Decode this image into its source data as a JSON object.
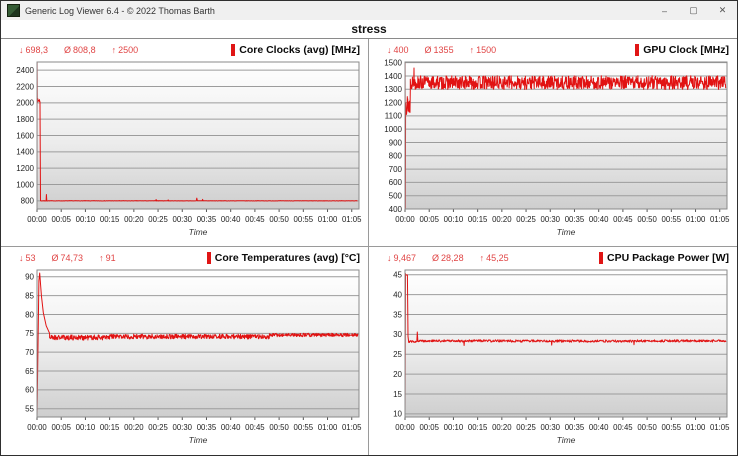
{
  "window": {
    "title": "Generic Log Viewer 6.4 - © 2022 Thomas Barth",
    "controls": {
      "minimize": "–",
      "maximize": "▢",
      "close": "✕"
    }
  },
  "header": {
    "title": "stress"
  },
  "colors": {
    "series_red": "#e11212",
    "stats_red": "#e04545",
    "grid_line": "#9c9c9c",
    "plot_border": "#8a8a8a",
    "axis_text": "#222222"
  },
  "chart_data": [
    {
      "id": "core-clocks",
      "type": "line",
      "title": "Core Clocks (avg) [MHz]",
      "stats": {
        "min_label": "↓",
        "min": "698,3",
        "avg_label": "Ø",
        "avg": "808,8",
        "max_label": "↑",
        "max": "2500"
      },
      "xlabel": "Time",
      "xlim_minutes": [
        0,
        66.5
      ],
      "xtick_minutes": [
        0,
        5,
        10,
        15,
        20,
        25,
        30,
        35,
        40,
        45,
        50,
        55,
        60,
        65
      ],
      "xtick_labels": [
        "00:00",
        "00:05",
        "00:10",
        "00:15",
        "00:20",
        "00:25",
        "00:30",
        "00:35",
        "00:40",
        "00:45",
        "00:50",
        "00:55",
        "01:00",
        "01:05"
      ],
      "ylim": [
        700,
        2500
      ],
      "yticks": [
        800,
        1000,
        1200,
        1400,
        1600,
        1800,
        2000,
        2200,
        2400
      ],
      "seed": 7,
      "signal": [
        {
          "k": "m",
          "t": 0,
          "v": 698.3
        },
        {
          "k": "l",
          "t": 0.03,
          "v": 2500
        },
        {
          "k": "l",
          "t": 0.06,
          "v": 2040
        },
        {
          "k": "f",
          "t1": 0.66,
          "v": 2028,
          "a": 22,
          "s": 0.05
        },
        {
          "k": "l",
          "t": 0.72,
          "v": 800
        },
        {
          "k": "f",
          "t1": 1.8,
          "v": 800,
          "a": 3,
          "s": 0.1
        },
        {
          "k": "sp",
          "t": 1.95,
          "v": 878,
          "w": 0.08
        },
        {
          "k": "f",
          "t1": 24.4,
          "v": 800,
          "a": 2.5,
          "s": 0.1
        },
        {
          "k": "sp",
          "t": 24.6,
          "v": 816,
          "w": 0.1
        },
        {
          "k": "f",
          "t1": 26.8,
          "v": 801,
          "a": 3,
          "s": 0.1
        },
        {
          "k": "sp",
          "t": 27.1,
          "v": 812,
          "w": 0.1
        },
        {
          "k": "f",
          "t1": 32.7,
          "v": 800,
          "a": 2.5,
          "s": 0.1
        },
        {
          "k": "sp",
          "t": 33,
          "v": 834,
          "w": 0.12
        },
        {
          "k": "sp",
          "t": 34.2,
          "v": 818,
          "w": 0.1
        },
        {
          "k": "f",
          "t1": 66.3,
          "v": 800,
          "a": 2.5,
          "s": 0.1
        }
      ]
    },
    {
      "id": "gpu-clock",
      "type": "line",
      "title": "GPU Clock [MHz]",
      "stats": {
        "min_label": "↓",
        "min": "400",
        "avg_label": "Ø",
        "avg": "1355",
        "max_label": "↑",
        "max": "1500"
      },
      "xlabel": "Time",
      "xlim_minutes": [
        0,
        66.5
      ],
      "xtick_minutes": [
        0,
        5,
        10,
        15,
        20,
        25,
        30,
        35,
        40,
        45,
        50,
        55,
        60,
        65
      ],
      "xtick_labels": [
        "00:00",
        "00:05",
        "00:10",
        "00:15",
        "00:20",
        "00:25",
        "00:30",
        "00:35",
        "00:40",
        "00:45",
        "00:50",
        "00:55",
        "01:00",
        "01:05"
      ],
      "ylim": [
        400,
        1505
      ],
      "yticks": [
        400,
        500,
        600,
        700,
        800,
        900,
        1000,
        1100,
        1200,
        1300,
        1400,
        1500
      ],
      "seed": 13,
      "signal": [
        {
          "k": "m",
          "t": 0,
          "v": 1400
        },
        {
          "k": "l",
          "t": 0.02,
          "v": 1500
        },
        {
          "k": "l",
          "t": 0.06,
          "v": 400
        },
        {
          "k": "l",
          "t": 0.12,
          "v": 1180
        },
        {
          "k": "b",
          "t1": 1.05,
          "lo": 1110,
          "hi": 1265,
          "s": 0.04
        },
        {
          "k": "l",
          "t": 1.1,
          "v": 1300
        },
        {
          "k": "b",
          "t1": 1.75,
          "lo": 1300,
          "hi": 1400,
          "s": 0.06
        },
        {
          "k": "sp",
          "t": 1.85,
          "v": 1460,
          "w": 0.05
        },
        {
          "k": "b",
          "t1": 66.3,
          "lo": 1298,
          "hi": 1402,
          "s": 0.07
        }
      ]
    },
    {
      "id": "core-temperatures",
      "type": "line",
      "title": "Core Temperatures (avg) [°C]",
      "stats": {
        "min_label": "↓",
        "min": "53",
        "avg_label": "Ø",
        "avg": "74,73",
        "max_label": "↑",
        "max": "91"
      },
      "xlabel": "Time",
      "xlim_minutes": [
        0,
        66.5
      ],
      "xtick_minutes": [
        0,
        5,
        10,
        15,
        20,
        25,
        30,
        35,
        40,
        45,
        50,
        55,
        60,
        65
      ],
      "xtick_labels": [
        "00:00",
        "00:05",
        "00:10",
        "00:15",
        "00:20",
        "00:25",
        "00:30",
        "00:35",
        "00:40",
        "00:45",
        "00:50",
        "00:55",
        "01:00",
        "01:05"
      ],
      "ylim": [
        52.8,
        91.8
      ],
      "yticks": [
        55,
        60,
        65,
        70,
        75,
        80,
        85,
        90
      ],
      "seed": 21,
      "signal": [
        {
          "k": "m",
          "t": 0,
          "v": 53
        },
        {
          "k": "l",
          "t": 0.4,
          "v": 89
        },
        {
          "k": "l",
          "t": 0.55,
          "v": 91
        },
        {
          "k": "l",
          "t": 0.9,
          "v": 85
        },
        {
          "k": "l",
          "t": 1.3,
          "v": 80.5
        },
        {
          "k": "l",
          "t": 1.9,
          "v": 77
        },
        {
          "k": "l",
          "t": 2.6,
          "v": 75
        },
        {
          "k": "b",
          "t1": 15,
          "lo": 73.2,
          "hi": 74.6,
          "s": 0.07
        },
        {
          "k": "b",
          "t1": 48,
          "lo": 73.5,
          "hi": 74.8,
          "s": 0.07
        },
        {
          "k": "b",
          "t1": 66.3,
          "lo": 74.1,
          "hi": 75,
          "s": 0.07
        }
      ]
    },
    {
      "id": "cpu-package-power",
      "type": "line",
      "title": "CPU Package Power [W]",
      "stats": {
        "min_label": "↓",
        "min": "9,467",
        "avg_label": "Ø",
        "avg": "28,28",
        "max_label": "↑",
        "max": "45,25"
      },
      "xlabel": "Time",
      "xlim_minutes": [
        0,
        66.5
      ],
      "xtick_minutes": [
        0,
        5,
        10,
        15,
        20,
        25,
        30,
        35,
        40,
        45,
        50,
        55,
        60,
        65
      ],
      "xtick_labels": [
        "00:00",
        "00:05",
        "00:10",
        "00:15",
        "00:20",
        "00:25",
        "00:30",
        "00:35",
        "00:40",
        "00:45",
        "00:50",
        "00:55",
        "01:00",
        "01:05"
      ],
      "ylim": [
        9.2,
        46.2
      ],
      "yticks": [
        10,
        15,
        20,
        25,
        30,
        35,
        40,
        45
      ],
      "seed": 29,
      "signal": [
        {
          "k": "m",
          "t": 0,
          "v": 9.467
        },
        {
          "k": "l",
          "t": 0.1,
          "v": 45.25
        },
        {
          "k": "f",
          "t1": 0.5,
          "v": 45.0,
          "a": 0.15,
          "s": 0.05
        },
        {
          "k": "l",
          "t": 0.62,
          "v": 29.5
        },
        {
          "k": "l",
          "t": 0.75,
          "v": 28.2
        },
        {
          "k": "f",
          "t1": 2.3,
          "v": 28.2,
          "a": 0.25,
          "s": 0.08
        },
        {
          "k": "sp",
          "t": 2.55,
          "v": 30.6,
          "w": 0.12
        },
        {
          "k": "f",
          "t1": 12,
          "v": 28.35,
          "a": 0.3,
          "s": 0.09
        },
        {
          "k": "sp",
          "t": 12.2,
          "v": 27.2,
          "w": 0.08
        },
        {
          "k": "f",
          "t1": 30,
          "v": 28.35,
          "a": 0.3,
          "s": 0.09
        },
        {
          "k": "sp",
          "t": 30.3,
          "v": 27.3,
          "w": 0.08
        },
        {
          "k": "f",
          "t1": 47,
          "v": 28.3,
          "a": 0.3,
          "s": 0.09
        },
        {
          "k": "sp",
          "t": 47.3,
          "v": 27.4,
          "w": 0.08
        },
        {
          "k": "f",
          "t1": 66.3,
          "v": 28.35,
          "a": 0.3,
          "s": 0.09
        }
      ]
    }
  ]
}
